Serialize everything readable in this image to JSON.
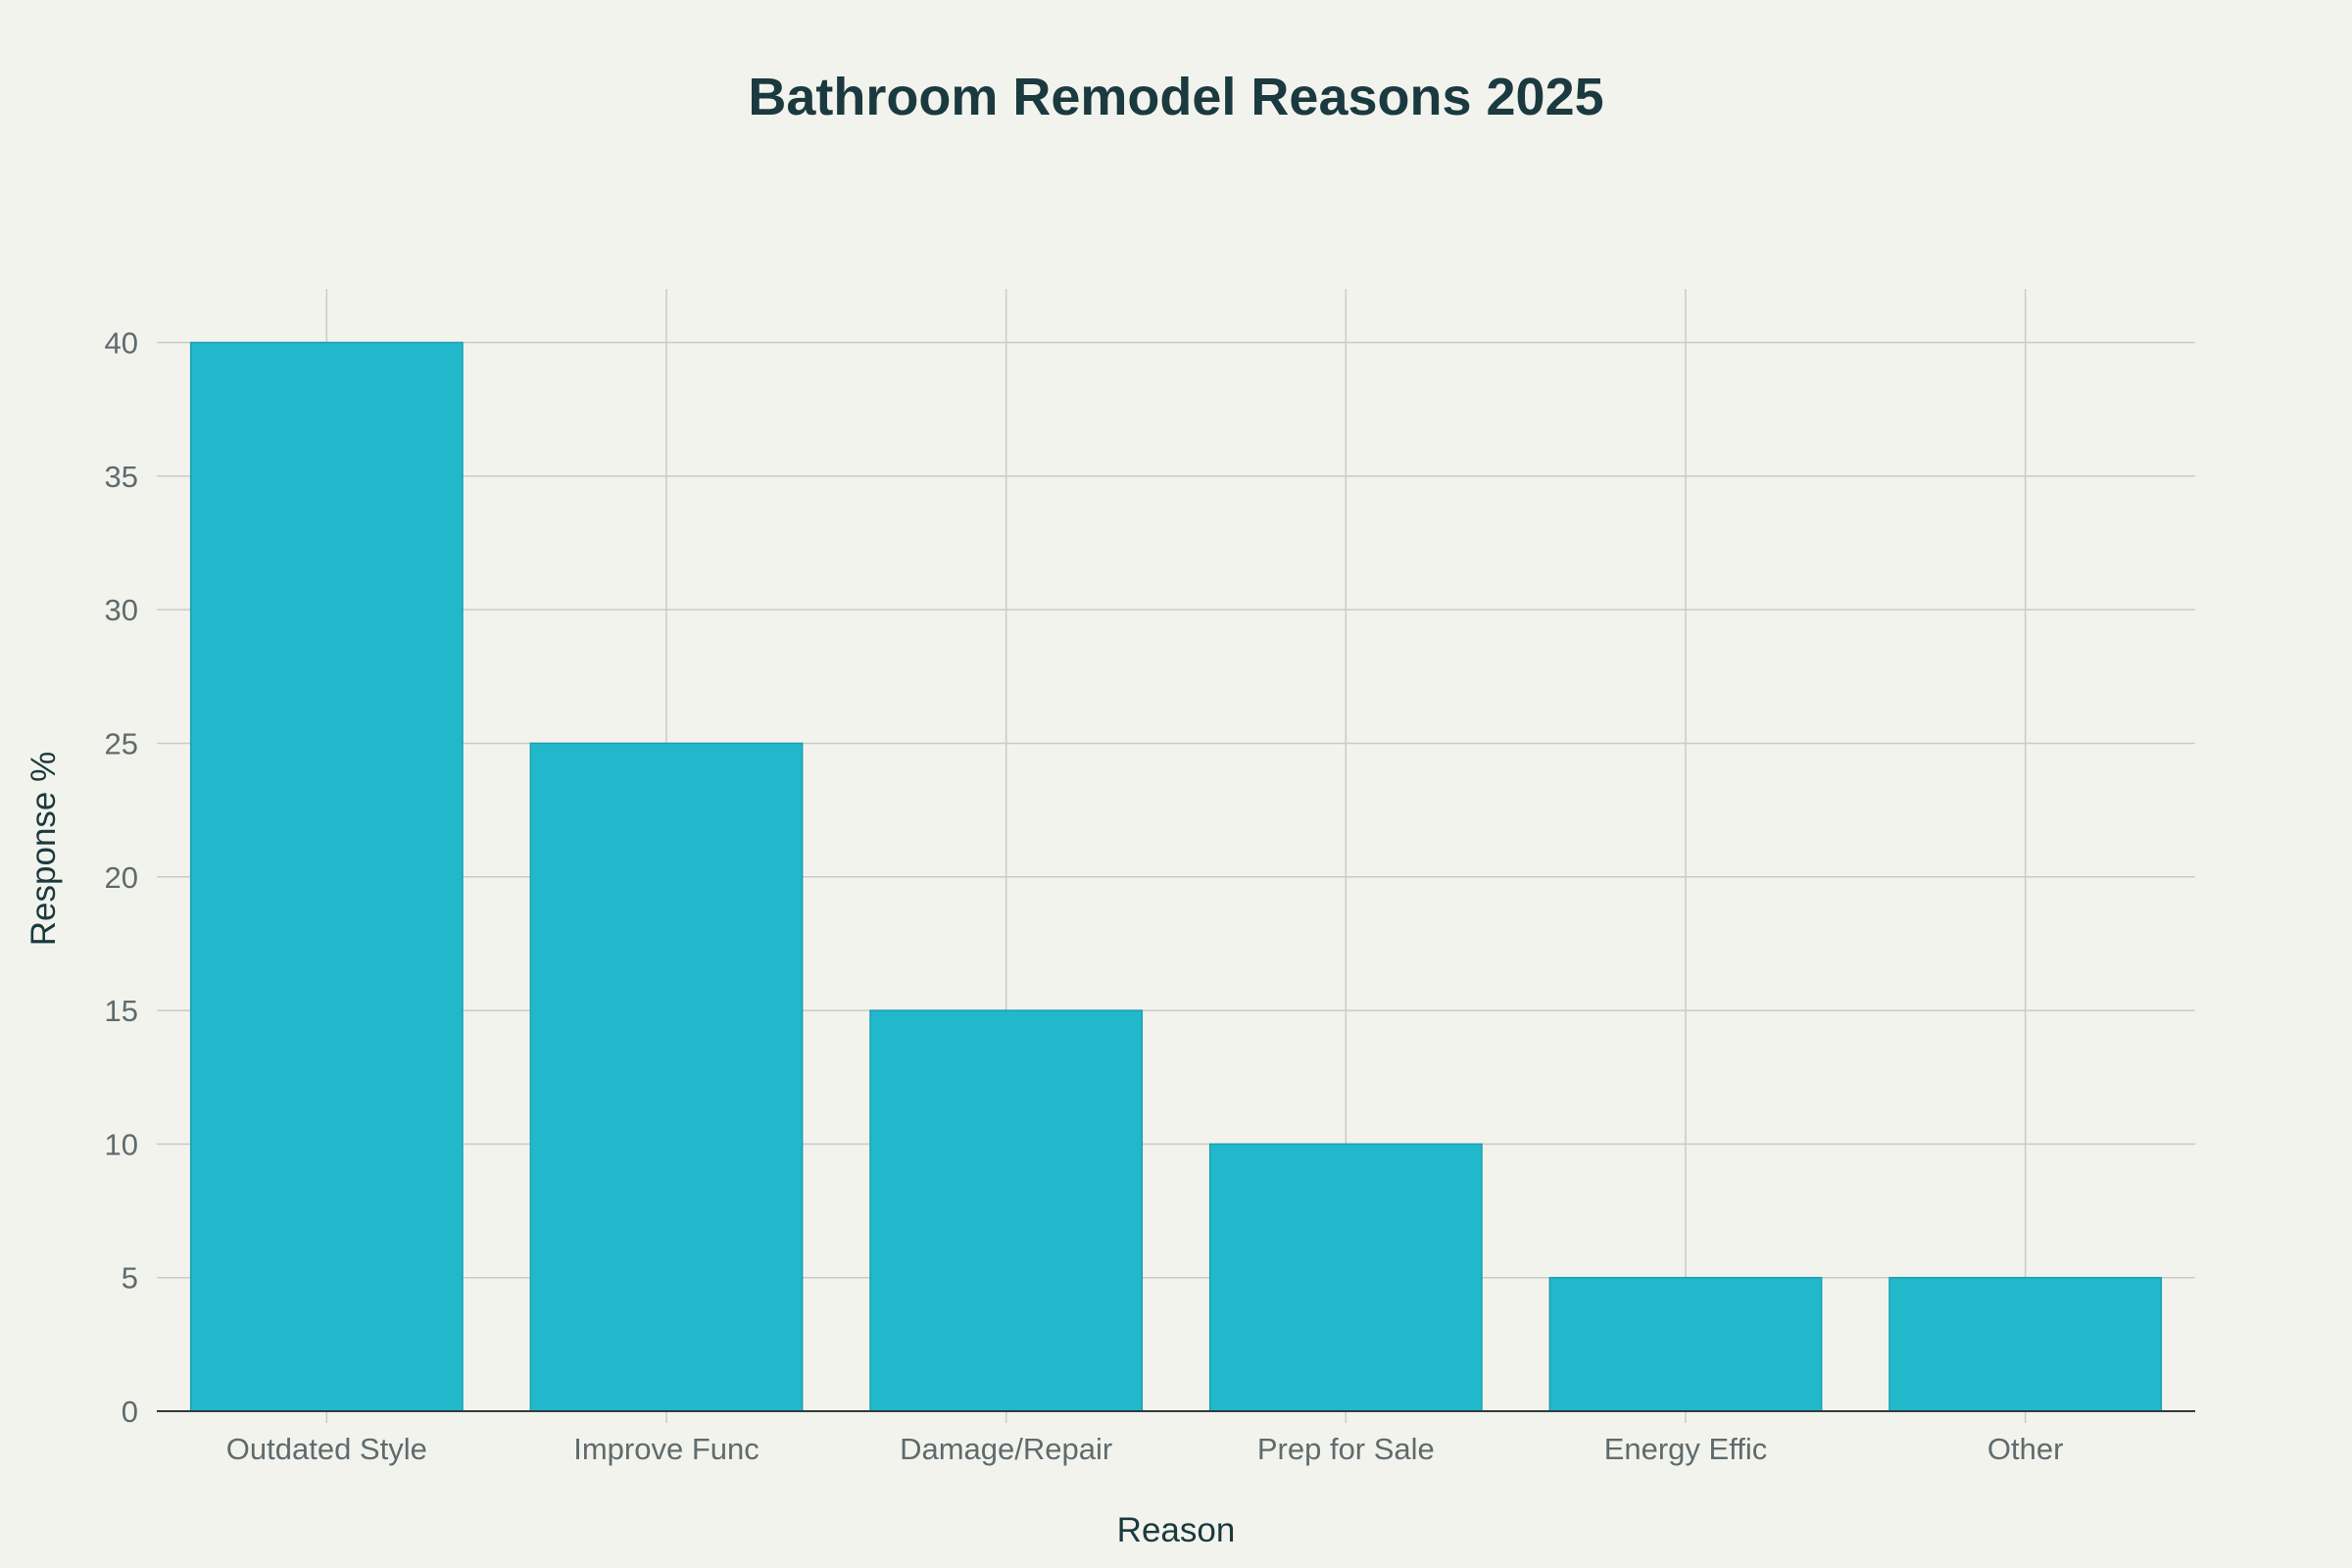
{
  "chart_data": {
    "type": "bar",
    "title": "Bathroom Remodel Reasons 2025",
    "xlabel": "Reason",
    "ylabel": "Response %",
    "categories": [
      "Outdated Style",
      "Improve Func",
      "Damage/Repair",
      "Prep for Sale",
      "Energy Effic",
      "Other"
    ],
    "values": [
      40,
      25,
      15,
      10,
      5,
      5
    ],
    "ylim": [
      0,
      42
    ],
    "yticks": [
      0,
      5,
      10,
      15,
      20,
      25,
      30,
      35,
      40
    ],
    "grid": true,
    "legend": "none",
    "colors": {
      "bar": "#21b8cc",
      "bar_edge": "#1a9fb1",
      "background": "#f3f3ee"
    }
  }
}
